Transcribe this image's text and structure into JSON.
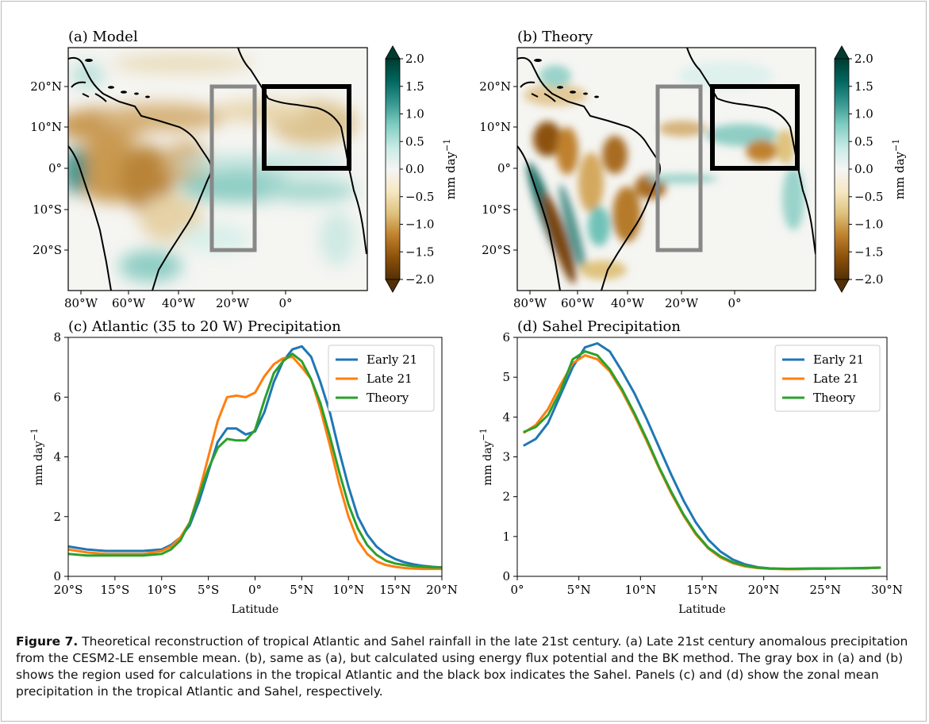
{
  "maps": [
    {
      "panel_label": "(a) Model",
      "lon_ticks": [
        "80°W",
        "60°W",
        "40°W",
        "20°W",
        "0°"
      ],
      "lat_ticks": [
        "20°N",
        "10°N",
        "0°",
        "10°S",
        "20°S"
      ],
      "colorbar": {
        "ticks": [
          "2.0",
          "1.5",
          "1.0",
          "0.5",
          "0.0",
          "−0.5",
          "−1.0",
          "−1.5",
          "−2.0"
        ],
        "label": "mm day",
        "label_sup": "−1",
        "range": [
          -2.0,
          2.0
        ],
        "colors": [
          "#543005",
          "#8c510a",
          "#bf812d",
          "#dfc27d",
          "#f6e8c3",
          "#f5f5f5",
          "#c7eae5",
          "#80cdc1",
          "#35978f",
          "#01665e",
          "#003c30"
        ]
      },
      "boxes": {
        "atlantic": {
          "lon": [
            -35,
            -20
          ],
          "lat": [
            -20,
            20
          ],
          "color": "#888888"
        },
        "sahel": {
          "lon": [
            -17,
            17
          ],
          "lat": [
            0,
            20
          ],
          "color": "#000000"
        }
      }
    },
    {
      "panel_label": "(b) Theory",
      "lon_ticks": [
        "80°W",
        "60°W",
        "40°W",
        "20°W",
        "0°"
      ],
      "lat_ticks": [
        "20°N",
        "10°N",
        "0°",
        "10°S",
        "20°S"
      ],
      "colorbar": {
        "ticks": [
          "2.0",
          "1.5",
          "1.0",
          "0.5",
          "0.0",
          "−0.5",
          "−1.0",
          "−1.5",
          "−2.0"
        ],
        "label": "mm day",
        "label_sup": "−1",
        "range": [
          -2.0,
          2.0
        ],
        "colors": [
          "#543005",
          "#8c510a",
          "#bf812d",
          "#dfc27d",
          "#f6e8c3",
          "#f5f5f5",
          "#c7eae5",
          "#80cdc1",
          "#35978f",
          "#01665e",
          "#003c30"
        ]
      },
      "boxes": {
        "atlantic": {
          "lon": [
            -35,
            -20
          ],
          "lat": [
            -20,
            20
          ],
          "color": "#888888"
        },
        "sahel": {
          "lon": [
            -17,
            17
          ],
          "lat": [
            0,
            20
          ],
          "color": "#000000"
        }
      }
    }
  ],
  "chart_data": [
    {
      "type": "line",
      "title": "(c) Atlantic (35 to 20 W) Precipitation",
      "xlabel": "Latitude",
      "ylabel": "mm day",
      "ylabel_sup": "−1",
      "xlim": [
        -20,
        20
      ],
      "ylim": [
        0,
        8
      ],
      "x_tick_values": [
        -20,
        -15,
        -10,
        -5,
        0,
        5,
        10,
        15,
        20
      ],
      "x_tick_labels": [
        "20°S",
        "15°S",
        "10°S",
        "5°S",
        "0°",
        "5°N",
        "10°N",
        "15°N",
        "20°N"
      ],
      "y_tick_values": [
        0,
        2,
        4,
        6,
        8
      ],
      "y_tick_labels": [
        "0",
        "2",
        "4",
        "6",
        "8"
      ],
      "legend_position": "top-right",
      "x": [
        -20,
        -18,
        -16,
        -14,
        -12,
        -10,
        -9,
        -8,
        -7,
        -6,
        -5,
        -4,
        -3,
        -2,
        -1,
        0,
        1,
        2,
        3,
        4,
        5,
        6,
        7,
        8,
        9,
        10,
        11,
        12,
        13,
        14,
        15,
        16,
        17,
        18,
        19,
        20
      ],
      "series": [
        {
          "name": "Early 21",
          "color": "#1f77b4",
          "values": [
            1.0,
            0.9,
            0.85,
            0.85,
            0.85,
            0.9,
            1.05,
            1.3,
            1.7,
            2.5,
            3.5,
            4.5,
            4.95,
            4.95,
            4.75,
            4.85,
            5.5,
            6.5,
            7.2,
            7.6,
            7.7,
            7.35,
            6.5,
            5.5,
            4.2,
            3.0,
            2.0,
            1.4,
            1.0,
            0.75,
            0.58,
            0.47,
            0.4,
            0.35,
            0.32,
            0.3
          ]
        },
        {
          "name": "Late 21",
          "color": "#ff7f0e",
          "values": [
            0.9,
            0.8,
            0.75,
            0.75,
            0.75,
            0.85,
            1.0,
            1.3,
            1.8,
            2.8,
            4.0,
            5.2,
            6.0,
            6.05,
            6.0,
            6.15,
            6.7,
            7.1,
            7.3,
            7.35,
            7.0,
            6.6,
            5.6,
            4.4,
            3.1,
            2.0,
            1.2,
            0.75,
            0.5,
            0.38,
            0.32,
            0.28,
            0.26,
            0.25,
            0.25,
            0.25
          ]
        },
        {
          "name": "Theory",
          "color": "#2ca02c",
          "values": [
            0.75,
            0.7,
            0.7,
            0.7,
            0.7,
            0.75,
            0.9,
            1.2,
            1.8,
            2.7,
            3.6,
            4.3,
            4.6,
            4.55,
            4.55,
            4.9,
            5.9,
            6.8,
            7.2,
            7.45,
            7.2,
            6.6,
            5.8,
            4.7,
            3.5,
            2.4,
            1.6,
            1.05,
            0.72,
            0.53,
            0.43,
            0.38,
            0.34,
            0.32,
            0.3,
            0.3
          ]
        }
      ]
    },
    {
      "type": "line",
      "title": "(d) Sahel Precipitation",
      "xlabel": "Latitude",
      "ylabel": "mm day",
      "ylabel_sup": "−1",
      "xlim": [
        0,
        30
      ],
      "ylim": [
        0,
        6
      ],
      "x_tick_values": [
        0,
        5,
        10,
        15,
        20,
        25,
        30
      ],
      "x_tick_labels": [
        "0°",
        "5°N",
        "10°N",
        "15°N",
        "20°N",
        "25°N",
        "30°N"
      ],
      "y_tick_values": [
        0,
        1,
        2,
        3,
        4,
        5,
        6
      ],
      "y_tick_labels": [
        "0",
        "1",
        "2",
        "3",
        "4",
        "5",
        "6"
      ],
      "legend_position": "top-right",
      "x": [
        0.5,
        1.5,
        2.5,
        3.5,
        4.5,
        5.5,
        6.5,
        7.5,
        8.5,
        9.5,
        10.5,
        11.5,
        12.5,
        13.5,
        14.5,
        15.5,
        16.5,
        17.5,
        18.5,
        19.5,
        20.5,
        22,
        24,
        26,
        28,
        29.5
      ],
      "series": [
        {
          "name": "Early 21",
          "color": "#1f77b4",
          "values": [
            3.28,
            3.45,
            3.85,
            4.55,
            5.25,
            5.75,
            5.85,
            5.65,
            5.15,
            4.6,
            3.95,
            3.25,
            2.55,
            1.9,
            1.35,
            0.92,
            0.62,
            0.42,
            0.3,
            0.23,
            0.2,
            0.18,
            0.19,
            0.2,
            0.2,
            0.22
          ]
        },
        {
          "name": "Late 21",
          "color": "#ff7f0e",
          "values": [
            3.6,
            3.8,
            4.2,
            4.8,
            5.35,
            5.55,
            5.45,
            5.15,
            4.65,
            4.05,
            3.4,
            2.72,
            2.08,
            1.52,
            1.05,
            0.7,
            0.47,
            0.33,
            0.25,
            0.21,
            0.19,
            0.18,
            0.19,
            0.2,
            0.2,
            0.22
          ]
        },
        {
          "name": "Theory",
          "color": "#2ca02c",
          "values": [
            3.62,
            3.75,
            4.05,
            4.65,
            5.45,
            5.65,
            5.55,
            5.2,
            4.7,
            4.1,
            3.45,
            2.75,
            2.12,
            1.55,
            1.08,
            0.72,
            0.5,
            0.35,
            0.27,
            0.22,
            0.2,
            0.19,
            0.2,
            0.2,
            0.21,
            0.22
          ]
        }
      ]
    }
  ],
  "caption": {
    "label": "Figure 7.",
    "text": " Theoretical reconstruction of tropical Atlantic and Sahel rainfall in the late 21st century. (a) Late 21st century anomalous precipitation from the CESM2-LE ensemble mean. (b), same as (a), but calculated using energy flux potential and the BK method. The gray box in (a) and (b) shows the region used for calculations in the tropical Atlantic and the black box indicates the Sahel. Panels (c) and (d) show the zonal mean precipitation in the tropical Atlantic and Sahel, respectively."
  }
}
